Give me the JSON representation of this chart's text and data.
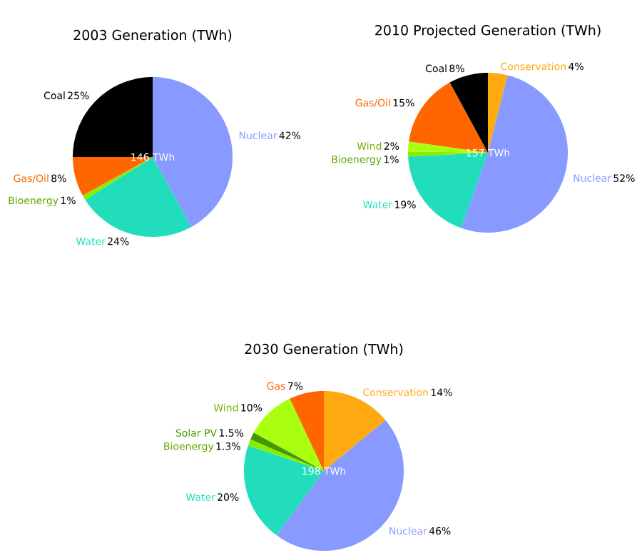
{
  "chart_data": [
    {
      "type": "pie",
      "title": "2003 Generation (TWh)",
      "categories": [
        "Nuclear",
        "Water",
        "Bioenergy",
        "Gas/Oil",
        "Coal"
      ],
      "values": [
        42,
        24,
        1,
        8,
        25
      ],
      "value_labels": [
        "42%",
        "24%",
        "1%",
        "8%",
        "25%"
      ],
      "colors": [
        "#8899ff",
        "#22ddbb",
        "#88ee00",
        "#ff6600",
        "#000000"
      ],
      "annotations": [
        "146 TWh"
      ]
    },
    {
      "type": "pie",
      "title": "2010 Projected Generation (TWh)",
      "categories": [
        "Conservation",
        "Nuclear",
        "Water",
        "Bioenergy",
        "Wind",
        "Gas/Oil",
        "Coal"
      ],
      "values": [
        4,
        52,
        19,
        1,
        2,
        15,
        8
      ],
      "value_labels": [
        "4%",
        "52%",
        "19%",
        "1%",
        "2%",
        "15%",
        "8%"
      ],
      "colors": [
        "#ffaa11",
        "#8899ff",
        "#22ddbb",
        "#88ee00",
        "#aaff11",
        "#ff6600",
        "#000000"
      ],
      "annotations": [
        "157 TWh"
      ]
    },
    {
      "type": "pie",
      "title": "2030 Generation (TWh)",
      "categories": [
        "Conservation",
        "Nuclear",
        "Water",
        "Bioenergy",
        "Solar PV",
        "Wind",
        "Gas"
      ],
      "values": [
        14,
        46,
        20,
        1.3,
        1.5,
        10,
        7
      ],
      "value_labels": [
        "14%",
        "46%",
        "20%",
        "1.3%",
        "1.5%",
        "10%",
        "7%"
      ],
      "colors": [
        "#ffaa11",
        "#8899ff",
        "#22ddbb",
        "#88ee00",
        "#449900",
        "#aaff11",
        "#ff6600"
      ],
      "annotations": [
        "198 TWh"
      ]
    }
  ]
}
